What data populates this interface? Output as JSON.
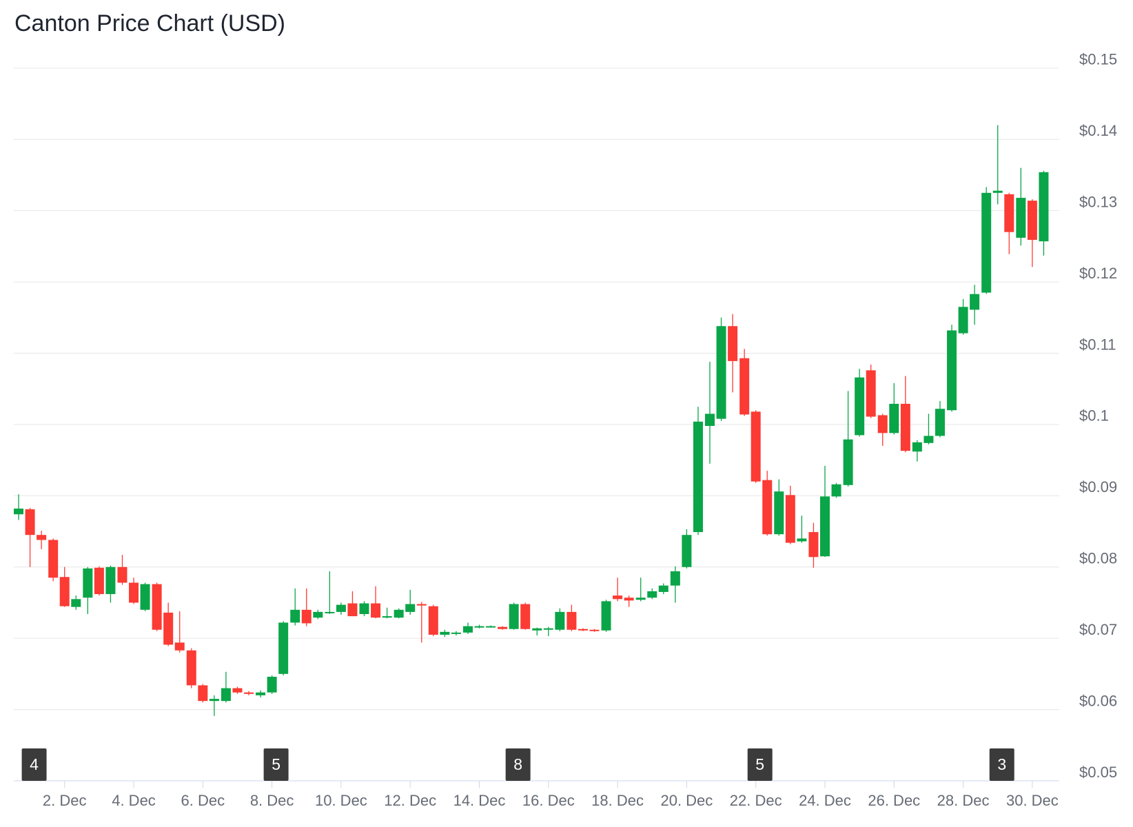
{
  "chart_data": {
    "type": "candlestick",
    "title": "Canton Price Chart (USD)",
    "up_color": "#0aa548",
    "down_color": "#fb3b34",
    "grid": true,
    "x": [
      0.67,
      1,
      1.33,
      1.67,
      2,
      2.33,
      2.67,
      3,
      3.33,
      3.67,
      4,
      4.33,
      4.67,
      5,
      5.33,
      5.67,
      6,
      6.33,
      6.67,
      7,
      7.33,
      7.67,
      8,
      8.33,
      8.67,
      9,
      9.33,
      9.67,
      10,
      10.33,
      10.67,
      11,
      11.33,
      11.67,
      12,
      12.33,
      12.67,
      13,
      13.33,
      13.67,
      14,
      14.33,
      14.67,
      15,
      15.33,
      15.67,
      16,
      16.33,
      16.67,
      17,
      17.33,
      17.67,
      18,
      18.33,
      18.67,
      19,
      19.33,
      19.67,
      20,
      20.33,
      20.67,
      21,
      21.33,
      21.67,
      22,
      22.33,
      22.67,
      23,
      23.33,
      23.67,
      24,
      24.33,
      24.67,
      25,
      25.33,
      25.67,
      26,
      26.33,
      26.67,
      27,
      27.33,
      27.67,
      28,
      28.33,
      28.67,
      29,
      29.33,
      29.67,
      30,
      30.33
    ],
    "open": [
      0.0874,
      0.0881,
      0.0845,
      0.0838,
      0.0786,
      0.0744,
      0.0757,
      0.0799,
      0.0762,
      0.08,
      0.0778,
      0.074,
      0.0776,
      0.0736,
      0.0694,
      0.0683,
      0.0634,
      0.0612,
      0.0612,
      0.063,
      0.0624,
      0.062,
      0.0624,
      0.065,
      0.0722,
      0.074,
      0.0729,
      0.0736,
      0.0737,
      0.0749,
      0.0734,
      0.0749,
      0.0729,
      0.0729,
      0.0737,
      0.0748,
      0.0745,
      0.0705,
      0.0707,
      0.0708,
      0.0715,
      0.0716,
      0.0716,
      0.0713,
      0.0748,
      0.0711,
      0.0712,
      0.0712,
      0.0737,
      0.0713,
      0.0712,
      0.0711,
      0.076,
      0.0757,
      0.0754,
      0.0757,
      0.0765,
      0.0774,
      0.08,
      0.0849,
      0.0998,
      0.1008,
      0.1138,
      0.1093,
      0.1018,
      0.0922,
      0.0846,
      0.0901,
      0.0836,
      0.0849,
      0.0815,
      0.0899,
      0.0915,
      0.0985,
      0.1076,
      0.1013,
      0.0988,
      0.1029,
      0.0962,
      0.0974,
      0.0984,
      0.102,
      0.1128,
      0.1161,
      0.1185,
      0.1325,
      0.1323,
      0.1262,
      0.1314,
      0.1257
    ],
    "high": [
      0.0902,
      0.0883,
      0.0851,
      0.084,
      0.08,
      0.076,
      0.08,
      0.0801,
      0.0802,
      0.0817,
      0.0785,
      0.0778,
      0.0778,
      0.075,
      0.0738,
      0.0686,
      0.0636,
      0.062,
      0.0653,
      0.0632,
      0.0626,
      0.0627,
      0.0648,
      0.0724,
      0.077,
      0.077,
      0.074,
      0.0794,
      0.075,
      0.0766,
      0.0752,
      0.0773,
      0.0743,
      0.0742,
      0.0768,
      0.0751,
      0.0747,
      0.0712,
      0.071,
      0.0722,
      0.0719,
      0.0718,
      0.0717,
      0.075,
      0.075,
      0.0715,
      0.0716,
      0.0742,
      0.0747,
      0.0714,
      0.0713,
      0.0754,
      0.0785,
      0.076,
      0.0785,
      0.077,
      0.0777,
      0.0801,
      0.0853,
      0.1025,
      0.1088,
      0.115,
      0.1155,
      0.1106,
      0.102,
      0.0935,
      0.0923,
      0.0914,
      0.0872,
      0.0862,
      0.0942,
      0.0918,
      0.1047,
      0.1078,
      0.1084,
      0.1015,
      0.1058,
      0.1068,
      0.0978,
      0.1015,
      0.1033,
      0.114,
      0.1176,
      0.1196,
      0.1333,
      0.142,
      0.1325,
      0.136,
      0.1316,
      0.1356
    ],
    "low": [
      0.0866,
      0.08,
      0.0825,
      0.078,
      0.0744,
      0.074,
      0.0734,
      0.076,
      0.075,
      0.0775,
      0.0748,
      0.0738,
      0.071,
      0.0689,
      0.068,
      0.063,
      0.061,
      0.0591,
      0.061,
      0.0622,
      0.062,
      0.0617,
      0.0622,
      0.0648,
      0.0718,
      0.0717,
      0.0727,
      0.0734,
      0.0733,
      0.0731,
      0.0731,
      0.0728,
      0.0728,
      0.0728,
      0.0733,
      0.0694,
      0.0703,
      0.0702,
      0.0704,
      0.0706,
      0.0714,
      0.0715,
      0.0712,
      0.0712,
      0.0712,
      0.0704,
      0.0703,
      0.071,
      0.071,
      0.071,
      0.0709,
      0.0709,
      0.0752,
      0.0744,
      0.0752,
      0.0755,
      0.0762,
      0.075,
      0.0798,
      0.0845,
      0.0945,
      0.1005,
      0.1045,
      0.1012,
      0.0918,
      0.0844,
      0.0844,
      0.0832,
      0.0834,
      0.0799,
      0.0814,
      0.0897,
      0.0913,
      0.0983,
      0.1009,
      0.097,
      0.0986,
      0.0961,
      0.0948,
      0.0972,
      0.0982,
      0.1018,
      0.1126,
      0.114,
      0.1183,
      0.1309,
      0.1239,
      0.1251,
      0.1221,
      0.1237
    ],
    "close": [
      0.0882,
      0.0845,
      0.0838,
      0.0785,
      0.0745,
      0.0755,
      0.0798,
      0.0762,
      0.08,
      0.0778,
      0.075,
      0.0776,
      0.0712,
      0.0691,
      0.0683,
      0.0634,
      0.0612,
      0.0615,
      0.063,
      0.0624,
      0.0622,
      0.0624,
      0.0646,
      0.0722,
      0.074,
      0.0721,
      0.0737,
      0.0737,
      0.0747,
      0.0731,
      0.0749,
      0.0729,
      0.0731,
      0.074,
      0.0748,
      0.0746,
      0.0705,
      0.0709,
      0.0708,
      0.0717,
      0.0717,
      0.0717,
      0.0713,
      0.0748,
      0.0713,
      0.0714,
      0.0714,
      0.0737,
      0.0712,
      0.0711,
      0.0711,
      0.0752,
      0.0755,
      0.0753,
      0.0757,
      0.0766,
      0.0774,
      0.0794,
      0.0845,
      0.1004,
      0.1015,
      0.1138,
      0.1089,
      0.1014,
      0.092,
      0.0846,
      0.0906,
      0.0834,
      0.084,
      0.0814,
      0.0899,
      0.0916,
      0.0979,
      0.1066,
      0.1011,
      0.0988,
      0.1029,
      0.0963,
      0.0975,
      0.0984,
      0.1022,
      0.1132,
      0.1165,
      0.1183,
      0.1325,
      0.1328,
      0.127,
      0.1318,
      0.1259,
      0.1354
    ],
    "xlim": [
      0.53,
      30.78
    ],
    "xticks": [
      {
        "value": 2,
        "label": "2. Dec"
      },
      {
        "value": 4,
        "label": "4. Dec"
      },
      {
        "value": 6,
        "label": "6. Dec"
      },
      {
        "value": 8,
        "label": "8. Dec"
      },
      {
        "value": 10,
        "label": "10. Dec"
      },
      {
        "value": 12,
        "label": "12. Dec"
      },
      {
        "value": 14,
        "label": "14. Dec"
      },
      {
        "value": 16,
        "label": "16. Dec"
      },
      {
        "value": 18,
        "label": "18. Dec"
      },
      {
        "value": 20,
        "label": "20. Dec"
      },
      {
        "value": 22,
        "label": "22. Dec"
      },
      {
        "value": 24,
        "label": "24. Dec"
      },
      {
        "value": 26,
        "label": "26. Dec"
      },
      {
        "value": 28,
        "label": "28. Dec"
      },
      {
        "value": 30,
        "label": "30. Dec"
      }
    ],
    "ylim": [
      0.05,
      0.1525
    ],
    "yticks": [
      {
        "value": 0.05,
        "label": "$0.05"
      },
      {
        "value": 0.06,
        "label": "$0.06"
      },
      {
        "value": 0.07,
        "label": "$0.07"
      },
      {
        "value": 0.08,
        "label": "$0.08"
      },
      {
        "value": 0.09,
        "label": "$0.09"
      },
      {
        "value": 0.1,
        "label": "$0.1"
      },
      {
        "value": 0.11,
        "label": "$0.11"
      },
      {
        "value": 0.12,
        "label": "$0.12"
      },
      {
        "value": 0.13,
        "label": "$0.13"
      },
      {
        "value": 0.14,
        "label": "$0.14"
      },
      {
        "value": 0.15,
        "label": "$0.15"
      }
    ],
    "flags": [
      {
        "x": 1,
        "label": "4"
      },
      {
        "x": 8,
        "label": "5"
      },
      {
        "x": 15,
        "label": "8"
      },
      {
        "x": 22,
        "label": "5"
      },
      {
        "x": 29,
        "label": "3"
      }
    ]
  }
}
